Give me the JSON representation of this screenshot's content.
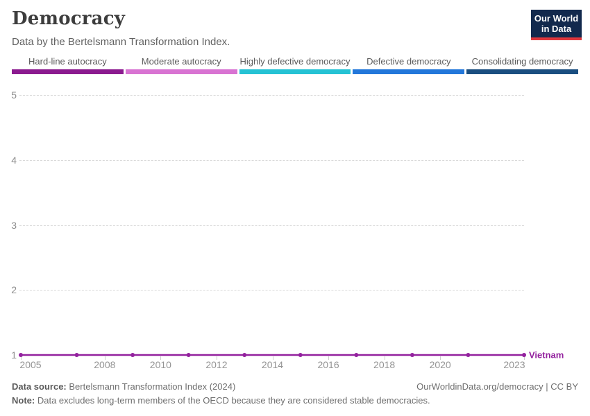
{
  "header": {
    "title": "Democracy",
    "subtitle": "Data by the Bertelsmann Transformation Index.",
    "logo": {
      "line1": "Our World",
      "line2": "in Data"
    }
  },
  "legend": [
    {
      "label": "Hard-line autocracy",
      "color": "#8B1A8F"
    },
    {
      "label": "Moderate autocracy",
      "color": "#D873D2"
    },
    {
      "label": "Highly defective democracy",
      "color": "#25C2D4"
    },
    {
      "label": "Defective democracy",
      "color": "#2277DA"
    },
    {
      "label": "Consolidating democracy",
      "color": "#1A4E80"
    }
  ],
  "chart_data": {
    "type": "line",
    "title": "Democracy",
    "subtitle": "Data by the Bertelsmann Transformation Index.",
    "series": [
      {
        "name": "Vietnam",
        "color": "#93219E",
        "x": [
          2005,
          2007,
          2009,
          2011,
          2013,
          2015,
          2017,
          2019,
          2021,
          2023
        ],
        "values": [
          1,
          1,
          1,
          1,
          1,
          1,
          1,
          1,
          1,
          1
        ]
      }
    ],
    "x_ticks": [
      2005,
      2008,
      2010,
      2012,
      2014,
      2016,
      2018,
      2020,
      2023
    ],
    "y_ticks": [
      1,
      2,
      3,
      4,
      5
    ],
    "xlim": [
      2005,
      2023
    ],
    "ylim": [
      1,
      5
    ],
    "grid": "horizontal-dashed",
    "legend_position": "top-categorical-bands"
  },
  "footer": {
    "source_label": "Data source:",
    "source_value": "Bertelsmann Transformation Index (2024)",
    "attribution": "OurWorldinData.org/democracy | CC BY",
    "note_label": "Note:",
    "note_value": "Data excludes long-term members of the OECD because they are considered stable democracies."
  },
  "colors": {
    "logo_bg": "#12294D",
    "logo_accent": "#E0373C",
    "series_vietnam": "#93219E"
  }
}
